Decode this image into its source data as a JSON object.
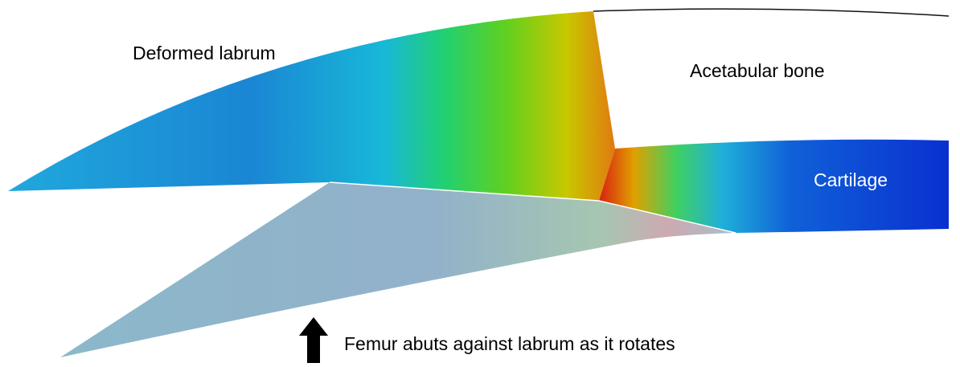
{
  "labels": {
    "labrum": "Deformed labrum",
    "bone": "Acetabular bone",
    "cartilage": "Cartilage",
    "femur": "Femur abuts against labrum as it rotates"
  }
}
